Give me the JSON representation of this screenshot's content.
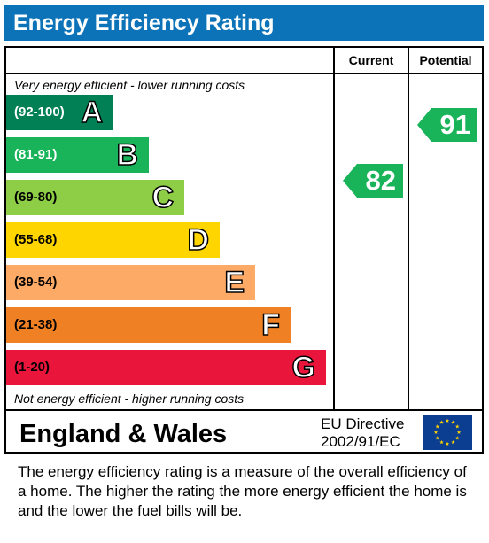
{
  "title": "Energy Efficiency Rating",
  "columns": {
    "current": "Current",
    "potential": "Potential"
  },
  "top_note": "Very energy efficient - lower running costs",
  "bottom_note": "Not energy efficient - higher running costs",
  "region": "England & Wales",
  "directive": {
    "line1": "EU Directive",
    "line2": "2002/91/EC"
  },
  "explanation": "The energy efficiency rating is a measure of the overall efficiency of a home.  The higher the rating the more energy efficient the home is and the lower the fuel bills will be.",
  "chart_data": {
    "type": "bar",
    "bands": [
      {
        "range": "(92-100)",
        "letter": "A",
        "color": "#008054",
        "range_color": "#ffffff"
      },
      {
        "range": "(81-91)",
        "letter": "B",
        "color": "#19b459",
        "range_color": "#ffffff"
      },
      {
        "range": "(69-80)",
        "letter": "C",
        "color": "#8dce46",
        "range_color": "#000000"
      },
      {
        "range": "(55-68)",
        "letter": "D",
        "color": "#ffd500",
        "range_color": "#000000"
      },
      {
        "range": "(39-54)",
        "letter": "E",
        "color": "#fcaa65",
        "range_color": "#000000"
      },
      {
        "range": "(21-38)",
        "letter": "F",
        "color": "#ef8023",
        "range_color": "#000000"
      },
      {
        "range": "(1-20)",
        "letter": "G",
        "color": "#e9153b",
        "range_color": "#000000"
      }
    ],
    "current": {
      "value": 82,
      "band": "B",
      "color": "#19b459"
    },
    "potential": {
      "value": 91,
      "band": "B",
      "color": "#19b459"
    }
  }
}
